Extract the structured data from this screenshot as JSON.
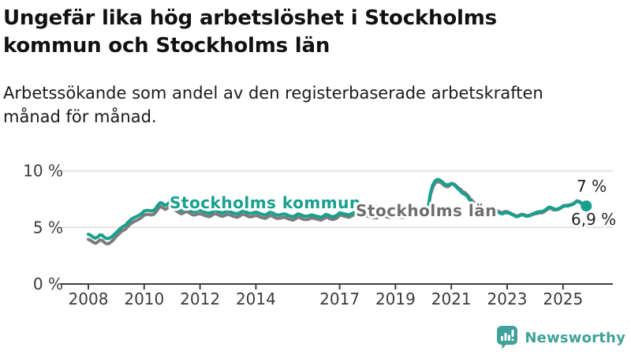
{
  "header": {
    "title": "Ungefär lika hög arbetslöshet i Stockholms kommun och Stockholms län",
    "subtitle": "Arbetssökande som andel av den registerbaserade arbetskraften månad för månad."
  },
  "chart_data": {
    "type": "line",
    "unit": "%",
    "frequency": "monthly",
    "x_start": {
      "year": 2008,
      "month": 1
    },
    "x_end": {
      "year": 2025,
      "month": 11
    },
    "x_ticks": [
      2008,
      2010,
      2012,
      2014,
      2017,
      2019,
      2021,
      2023,
      2025
    ],
    "y_ticks": [
      {
        "value": 0,
        "label": "0 %"
      },
      {
        "value": 5,
        "label": "5 %"
      },
      {
        "value": 10,
        "label": "10 %"
      }
    ],
    "ylim": [
      0,
      10
    ],
    "grid": "horizontal-only",
    "legend_position": "inline-labels",
    "series": [
      {
        "name": "Stockholms län",
        "color": "#7c7c7c",
        "label_color": "#6e6e6e",
        "end_label": "7 %",
        "end_value": 7.0,
        "values": [
          3.95,
          3.85,
          3.7,
          3.6,
          3.7,
          3.9,
          3.85,
          3.65,
          3.55,
          3.6,
          3.75,
          3.95,
          4.2,
          4.4,
          4.6,
          4.75,
          4.85,
          5.1,
          5.3,
          5.45,
          5.55,
          5.65,
          5.75,
          5.9,
          6.1,
          6.15,
          6.15,
          6.1,
          6.15,
          6.35,
          6.65,
          6.85,
          6.75,
          6.6,
          6.7,
          6.9,
          6.75,
          6.6,
          6.45,
          6.3,
          6.2,
          6.3,
          6.4,
          6.35,
          6.2,
          6.1,
          6.1,
          6.2,
          6.2,
          6.15,
          6.05,
          6.0,
          5.95,
          6.05,
          6.2,
          6.2,
          6.1,
          6.0,
          6.0,
          6.1,
          6.15,
          6.1,
          6.0,
          5.95,
          5.9,
          6.0,
          6.15,
          6.15,
          6.05,
          5.95,
          5.95,
          6.0,
          6.05,
          6.0,
          5.9,
          5.85,
          5.8,
          5.9,
          6.05,
          6.0,
          5.9,
          5.8,
          5.8,
          5.85,
          5.9,
          5.85,
          5.75,
          5.7,
          5.65,
          5.75,
          5.9,
          5.85,
          5.75,
          5.7,
          5.7,
          5.75,
          5.85,
          5.8,
          5.75,
          5.7,
          5.65,
          5.75,
          5.9,
          5.85,
          5.75,
          5.7,
          5.75,
          5.85,
          6.1,
          6.05,
          6.0,
          5.95,
          5.9,
          6.0,
          6.1,
          6.1,
          6.0,
          5.95,
          5.95,
          6.0,
          6.0,
          5.95,
          5.9,
          5.85,
          5.85,
          5.95,
          6.05,
          6.05,
          5.95,
          5.9,
          5.9,
          5.95,
          5.95,
          5.95,
          5.9,
          5.9,
          5.9,
          6.0,
          6.15,
          6.1,
          6.0,
          6.0,
          6.05,
          6.15,
          6.2,
          6.2,
          6.5,
          7.85,
          8.55,
          8.9,
          9.05,
          9.0,
          8.9,
          8.7,
          8.6,
          8.65,
          8.9,
          8.85,
          8.7,
          8.5,
          8.35,
          8.15,
          8.05,
          7.85,
          7.55,
          7.35,
          7.15,
          7.05,
          7.0,
          6.9,
          6.75,
          6.6,
          6.5,
          6.55,
          6.65,
          6.6,
          6.45,
          6.35,
          6.3,
          6.4,
          6.4,
          6.3,
          6.2,
          6.1,
          6.0,
          6.05,
          6.15,
          6.15,
          6.05,
          6.05,
          6.1,
          6.2,
          6.2,
          6.25,
          6.3,
          6.3,
          6.4,
          6.55,
          6.7,
          6.65,
          6.55,
          6.55,
          6.6,
          6.7,
          6.9,
          6.95,
          6.95,
          7.0,
          7.05,
          7.2,
          7.35,
          7.3,
          7.15,
          7.05,
          7.0
        ]
      },
      {
        "name": "Stockholms kommun",
        "color": "#17a08e",
        "label_color": "#17a08e",
        "end_label": "6,9 %",
        "end_value": 6.9,
        "values": [
          4.4,
          4.3,
          4.15,
          4.05,
          4.15,
          4.35,
          4.3,
          4.1,
          4.0,
          4.05,
          4.15,
          4.35,
          4.55,
          4.75,
          4.95,
          5.1,
          5.2,
          5.45,
          5.65,
          5.8,
          5.9,
          6.0,
          6.1,
          6.25,
          6.45,
          6.5,
          6.5,
          6.45,
          6.5,
          6.7,
          7.0,
          7.2,
          7.1,
          6.95,
          7.05,
          7.25,
          7.1,
          6.95,
          6.75,
          6.6,
          6.5,
          6.6,
          6.7,
          6.65,
          6.5,
          6.4,
          6.4,
          6.5,
          6.5,
          6.45,
          6.35,
          6.3,
          6.25,
          6.35,
          6.5,
          6.5,
          6.4,
          6.3,
          6.3,
          6.4,
          6.45,
          6.4,
          6.3,
          6.25,
          6.2,
          6.3,
          6.45,
          6.45,
          6.35,
          6.25,
          6.25,
          6.3,
          6.35,
          6.3,
          6.2,
          6.15,
          6.1,
          6.2,
          6.35,
          6.3,
          6.2,
          6.1,
          6.1,
          6.15,
          6.2,
          6.15,
          6.05,
          6.0,
          5.95,
          6.05,
          6.2,
          6.15,
          6.05,
          6.0,
          6.0,
          6.05,
          6.1,
          6.05,
          6.0,
          5.95,
          5.9,
          6.0,
          6.15,
          6.1,
          6.0,
          5.95,
          6.0,
          6.1,
          6.3,
          6.25,
          6.2,
          6.15,
          6.1,
          6.2,
          6.3,
          6.3,
          6.2,
          6.1,
          6.1,
          6.15,
          6.15,
          6.1,
          6.05,
          6.0,
          6.0,
          6.1,
          6.2,
          6.15,
          6.05,
          6.0,
          6.0,
          6.05,
          6.05,
          6.05,
          6.0,
          6.0,
          6.0,
          6.1,
          6.25,
          6.2,
          6.1,
          6.1,
          6.15,
          6.25,
          6.35,
          6.35,
          6.65,
          8.0,
          8.75,
          9.1,
          9.25,
          9.2,
          9.05,
          8.85,
          8.75,
          8.8,
          8.85,
          8.8,
          8.6,
          8.4,
          8.2,
          8.0,
          7.9,
          7.7,
          7.4,
          7.2,
          7.0,
          6.9,
          6.85,
          6.75,
          6.6,
          6.5,
          6.4,
          6.45,
          6.55,
          6.5,
          6.35,
          6.25,
          6.2,
          6.3,
          6.3,
          6.25,
          6.15,
          6.05,
          5.95,
          6.0,
          6.1,
          6.1,
          6.0,
          6.0,
          6.05,
          6.15,
          6.3,
          6.35,
          6.4,
          6.4,
          6.5,
          6.65,
          6.8,
          6.75,
          6.65,
          6.6,
          6.65,
          6.75,
          6.85,
          6.9,
          6.9,
          6.95,
          7.0,
          7.15,
          7.3,
          7.25,
          7.1,
          6.95,
          6.9
        ]
      }
    ]
  },
  "branding": {
    "logo_text": "Newsworthy",
    "logo_color": "#3fa199",
    "logo_icon": "bar-chart-speech-bubble-icon"
  }
}
